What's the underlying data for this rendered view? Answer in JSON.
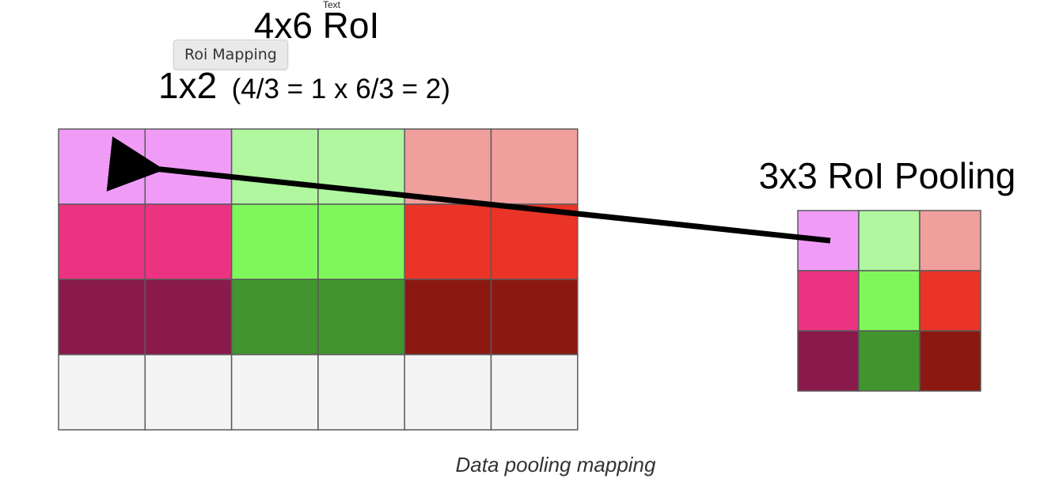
{
  "roi": {
    "title": "4x6 RoI",
    "title_note": "Text",
    "mapping_main": "1x2",
    "mapping_detail": "(4/3 = 1 x 6/3 = 2)",
    "rows": 4,
    "cols": 6,
    "cell_colors": [
      [
        "#f09cf7",
        "#f09cf7",
        "#b0f7a0",
        "#b0f7a0",
        "#f09f9d",
        "#f09f9d"
      ],
      [
        "#eb3381",
        "#eb3381",
        "#7ff75a",
        "#7ff75a",
        "#e93427",
        "#e93427"
      ],
      [
        "#8b1a4c",
        "#8b1a4c",
        "#42942e",
        "#42942e",
        "#8b1912",
        "#8b1912"
      ],
      [
        "#f4f4f4",
        "#f4f4f4",
        "#f4f4f4",
        "#f4f4f4",
        "#f4f4f4",
        "#f4f4f4"
      ]
    ]
  },
  "pooling": {
    "title": "3x3 RoI Pooling",
    "rows": 3,
    "cols": 3,
    "cell_colors": [
      [
        "#f09cf7",
        "#b0f7a0",
        "#f09f9d"
      ],
      [
        "#eb3381",
        "#7ff75a",
        "#e93427"
      ],
      [
        "#8b1a4c",
        "#42942e",
        "#8b1912"
      ]
    ]
  },
  "tooltip": {
    "label": "Roi Mapping"
  },
  "caption": "Data pooling mapping",
  "colors": {
    "grid_line": "#5b5b5b",
    "arrow": "#000000",
    "text": "#000000"
  }
}
